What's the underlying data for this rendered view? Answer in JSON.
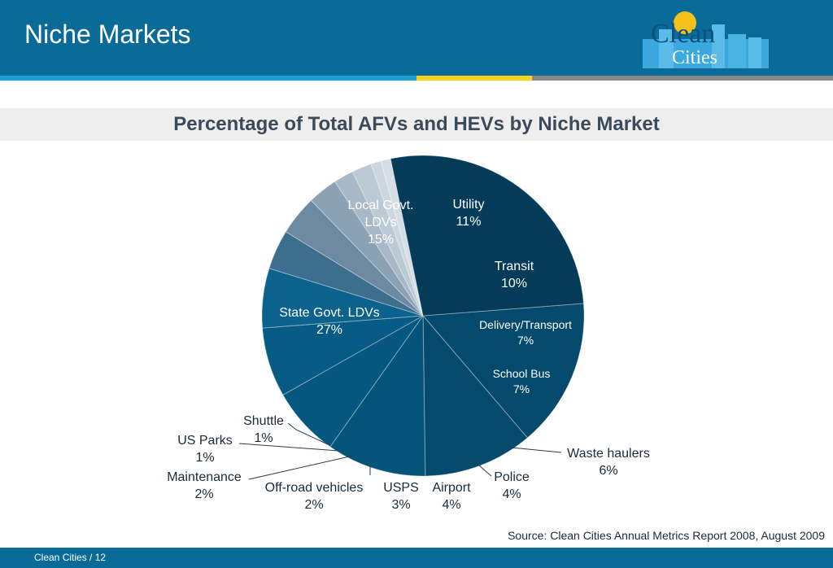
{
  "header": {
    "title": "Niche Markets"
  },
  "logo": {
    "line1": "Clean",
    "line2": "Cities"
  },
  "chart_data": {
    "type": "pie",
    "title": "Percentage of Total AFVs and HEVs by Niche Market",
    "unit": "%",
    "slices": [
      {
        "label": "Local Govt. LDVs",
        "value": 15,
        "color": "#044a6c"
      },
      {
        "label": "Utility",
        "value": 11,
        "color": "#044a6c"
      },
      {
        "label": "Transit",
        "value": 10,
        "color": "#045479"
      },
      {
        "label": "Delivery/Transport",
        "value": 7,
        "color": "#055780"
      },
      {
        "label": "School Bus",
        "value": 7,
        "color": "#065b85"
      },
      {
        "label": "Waste haulers",
        "value": 6,
        "color": "#0b628c"
      },
      {
        "label": "Police",
        "value": 4,
        "color": "#3d6e8e"
      },
      {
        "label": "Airport",
        "value": 4,
        "color": "#6d8aa2"
      },
      {
        "label": "USPS",
        "value": 3,
        "color": "#8ba2b5"
      },
      {
        "label": "Off-road vehicles",
        "value": 2,
        "color": "#a8b8c6"
      },
      {
        "label": "Maintenance",
        "value": 2,
        "color": "#bccad5"
      },
      {
        "label": "US Parks",
        "value": 1,
        "color": "#ccd6de"
      },
      {
        "label": "Shuttle",
        "value": 1,
        "color": "#d6dee5"
      },
      {
        "label": "State Govt. LDVs",
        "value": 27,
        "color": "#033b58"
      }
    ],
    "labels": [
      {
        "lines": [
          "Local Govt.",
          "LDVs",
          "15%"
        ]
      },
      {
        "lines": [
          "Utility",
          "11%"
        ]
      },
      {
        "lines": [
          "Transit",
          "10%"
        ]
      },
      {
        "lines": [
          "Delivery/Transport",
          "7%"
        ]
      },
      {
        "lines": [
          "School Bus",
          "7%"
        ]
      },
      {
        "lines": [
          "Waste haulers",
          "6%"
        ]
      },
      {
        "lines": [
          "Police",
          "4%"
        ]
      },
      {
        "lines": [
          "Airport",
          "4%"
        ]
      },
      {
        "lines": [
          "USPS",
          "3%"
        ]
      },
      {
        "lines": [
          "Off-road vehicles",
          "2%"
        ]
      },
      {
        "lines": [
          "Maintenance",
          "2%"
        ]
      },
      {
        "lines": [
          "US Parks",
          "1%"
        ]
      },
      {
        "lines": [
          "Shuttle",
          "1%"
        ]
      },
      {
        "lines": [
          "State Govt. LDVs",
          "27%"
        ]
      }
    ]
  },
  "source": "Source: Clean Cities Annual Metrics Report 2008, August 2009",
  "footer": {
    "text": "Clean Cities  /  12"
  }
}
